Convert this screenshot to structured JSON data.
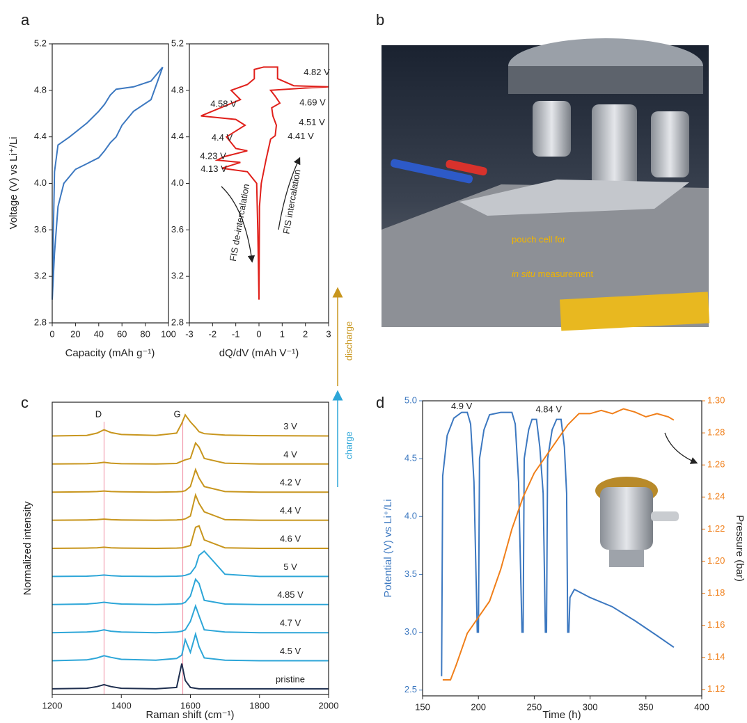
{
  "chart_data": [
    {
      "type": "line",
      "panel": "a",
      "x_label": "Capacity (mAh g⁻¹)",
      "y_label": "Voltage (V) vs Li⁺/Li",
      "xlim": [
        0,
        100
      ],
      "xticks": [
        0,
        20,
        40,
        60,
        80,
        100
      ],
      "ylim": [
        2.8,
        5.2
      ],
      "yticks": [
        2.8,
        3.2,
        3.6,
        {
          "value": 4,
          "label": "4.0"
        },
        4.4,
        4.8,
        5.2
      ],
      "series": [
        {
          "color": "#3c78c0",
          "x": [
            0,
            1,
            2,
            5,
            15,
            30,
            40,
            45,
            50,
            55,
            70,
            85,
            95
          ],
          "values": [
            3.0,
            3.6,
            4.1,
            4.33,
            4.4,
            4.52,
            4.62,
            4.68,
            4.76,
            4.81,
            4.83,
            4.88,
            5.0
          ]
        },
        {
          "color": "#3c78c0",
          "x": [
            95,
            85,
            70,
            60,
            55,
            50,
            45,
            40,
            30,
            20,
            10,
            5,
            2,
            0
          ],
          "values": [
            5.0,
            4.72,
            4.62,
            4.5,
            4.4,
            4.35,
            4.28,
            4.22,
            4.17,
            4.12,
            4.0,
            3.8,
            3.4,
            3.0
          ]
        }
      ]
    },
    {
      "type": "line",
      "panel": "",
      "x_label": "dQ/dV (mAh V⁻¹)",
      "xlim": [
        -3,
        3
      ],
      "xticks": [
        -3,
        -2,
        -1,
        0,
        1,
        2,
        3
      ],
      "ylim": [
        2.8,
        5.2
      ],
      "yticks": [
        2.8,
        3.2,
        3.6,
        {
          "value": 4,
          "label": "4.0"
        },
        4.4,
        4.8,
        5.2
      ],
      "series": [
        {
          "color": "#e0201b",
          "x": [
            0,
            0.02,
            0.1,
            0.3,
            0.5,
            0.7,
            0.75,
            0.6,
            0.55,
            0.9,
            0.7,
            0.5,
            2.0,
            3,
            1.5,
            0.8,
            0.8,
            0.2,
            -0.2,
            -0.2,
            -0.5,
            -1.2,
            -0.8,
            -2.5,
            -1,
            -0.6,
            -1.0,
            -1.4,
            -1,
            -0.5,
            -1.5,
            -1.8,
            -0.8,
            -1.6,
            -0.5,
            -0.1,
            -0.05,
            0
          ],
          "values": [
            3.0,
            3.8,
            4.0,
            4.2,
            4.38,
            4.41,
            4.5,
            4.58,
            4.65,
            4.69,
            4.75,
            4.8,
            4.82,
            4.83,
            4.84,
            4.9,
            5.0,
            5.0,
            4.98,
            4.9,
            4.85,
            4.8,
            4.72,
            4.58,
            4.55,
            4.5,
            4.45,
            4.4,
            4.3,
            4.28,
            4.23,
            4.2,
            4.18,
            4.13,
            4.1,
            4.0,
            3.6,
            3.0
          ]
        }
      ],
      "annotations": [
        {
          "text": "4.82 V",
          "x": 2.49,
          "y": 4.95
        },
        {
          "text": "4.69 V",
          "x": 2.31,
          "y": 4.69
        },
        {
          "text": "4.51 V",
          "x": 2.28,
          "y": 4.52
        },
        {
          "text": "4.41 V",
          "x": 1.8,
          "y": 4.4
        },
        {
          "text": "4.58 V",
          "x": -1.53,
          "y": 4.68
        },
        {
          "text": "4.4 V",
          "x": -1.59,
          "y": 4.39
        },
        {
          "text": "4.23 V",
          "x": -1.98,
          "y": 4.23
        },
        {
          "text": "4.13 V",
          "x": -1.95,
          "y": 4.12
        }
      ],
      "arrow_labels": [
        "FIS de-intercalation",
        "FIS intercalation"
      ]
    },
    {
      "type": "line",
      "panel": "c",
      "x_label": "Raman shift (cm⁻¹)",
      "y_label": "Normalized intensity",
      "xlim": [
        1200,
        2000
      ],
      "xticks": [
        1200,
        1400,
        1600,
        1800,
        2000
      ],
      "ylim": [
        -0.2,
        10.2
      ],
      "reference_color": "#f08aa0",
      "reference_lines": [
        {
          "label": "D",
          "x": 1350
        },
        {
          "label": "G",
          "x": 1578
        }
      ],
      "arrow_labels": [
        "discharge",
        "charge"
      ],
      "series": [
        {
          "name": "3 V",
          "color": "#c8961e",
          "x": [
            1200,
            1300,
            1330,
            1350,
            1370,
            1400,
            1500,
            1560,
            1575,
            1585,
            1600,
            1615,
            1625,
            1640,
            1700,
            1800,
            2000
          ],
          "values": [
            9,
            9.02,
            9.1,
            9.22,
            9.12,
            9.05,
            9.02,
            9.1,
            9.45,
            9.75,
            9.5,
            9.3,
            9.15,
            9.08,
            9.03,
            9.01,
            9
          ]
        },
        {
          "name": "4 V",
          "color": "#c8961e",
          "x": [
            1200,
            1300,
            1330,
            1350,
            1370,
            1400,
            1500,
            1560,
            1575,
            1585,
            1600,
            1615,
            1625,
            1640,
            1700,
            1800,
            2000
          ],
          "values": [
            8,
            8.01,
            8.03,
            8.06,
            8.03,
            8.01,
            8,
            8.02,
            8.1,
            8.15,
            8.2,
            8.75,
            8.6,
            8.2,
            8.03,
            8,
            8
          ]
        },
        {
          "name": "4.2 V",
          "color": "#c8961e",
          "x": [
            1200,
            1300,
            1330,
            1350,
            1370,
            1400,
            1500,
            1560,
            1575,
            1585,
            1600,
            1615,
            1625,
            1640,
            1700,
            1800,
            2000
          ],
          "values": [
            7,
            7.01,
            7.02,
            7.04,
            7.02,
            7.01,
            7,
            7.01,
            7.02,
            7.05,
            7.2,
            7.8,
            7.5,
            7.2,
            7.02,
            7,
            7
          ]
        },
        {
          "name": "4.4 V",
          "color": "#c8961e",
          "x": [
            1200,
            1300,
            1330,
            1350,
            1370,
            1400,
            1500,
            1560,
            1575,
            1585,
            1600,
            1615,
            1625,
            1640,
            1700,
            1800,
            2000
          ],
          "values": [
            6,
            6.01,
            6.02,
            6.04,
            6.02,
            6.01,
            6,
            6.01,
            6.02,
            6.05,
            6.15,
            6.9,
            6.6,
            6.3,
            6.02,
            6,
            6
          ]
        },
        {
          "name": "4.6 V",
          "color": "#c8961e",
          "x": [
            1200,
            1300,
            1330,
            1350,
            1370,
            1400,
            1500,
            1560,
            1575,
            1585,
            1600,
            1615,
            1625,
            1640,
            1700,
            1800,
            2000
          ],
          "values": [
            5,
            5.01,
            5.02,
            5.04,
            5.02,
            5.01,
            5,
            5.01,
            5.02,
            5.05,
            5.1,
            5.75,
            5.8,
            5.3,
            5.02,
            5,
            5
          ]
        },
        {
          "name": "5 V",
          "color": "#2da6d8",
          "x": [
            1200,
            1300,
            1330,
            1350,
            1370,
            1400,
            1500,
            1560,
            1575,
            1585,
            1600,
            1615,
            1625,
            1640,
            1700,
            1800,
            2000
          ],
          "values": [
            4,
            4.01,
            4.03,
            4.05,
            4.03,
            4.01,
            4,
            4.01,
            4.02,
            4.04,
            4.1,
            4.35,
            4.75,
            4.9,
            4.08,
            4,
            4
          ]
        },
        {
          "name": "4.85 V",
          "color": "#2da6d8",
          "x": [
            1200,
            1300,
            1330,
            1350,
            1370,
            1400,
            1500,
            1560,
            1575,
            1585,
            1600,
            1615,
            1625,
            1640,
            1700,
            1800,
            2000
          ],
          "values": [
            3,
            3.02,
            3.05,
            3.08,
            3.05,
            3.02,
            3,
            3.02,
            3.03,
            3.08,
            3.3,
            3.9,
            3.75,
            3.15,
            3.02,
            3,
            3
          ]
        },
        {
          "name": "4.7 V",
          "color": "#2da6d8",
          "x": [
            1200,
            1300,
            1330,
            1350,
            1370,
            1400,
            1500,
            1560,
            1575,
            1585,
            1600,
            1615,
            1625,
            1640,
            1700,
            1800,
            2000
          ],
          "values": [
            2,
            2.02,
            2.05,
            2.1,
            2.05,
            2.02,
            2,
            2.02,
            2.05,
            2.1,
            2.4,
            2.95,
            2.6,
            2.1,
            2.02,
            2,
            2
          ]
        },
        {
          "name": "4.5 V",
          "color": "#2da6d8",
          "x": [
            1200,
            1300,
            1330,
            1350,
            1370,
            1400,
            1500,
            1560,
            1575,
            1585,
            1600,
            1615,
            1625,
            1640,
            1700,
            1800,
            2000
          ],
          "values": [
            1,
            1.03,
            1.1,
            1.18,
            1.12,
            1.05,
            1.02,
            1.08,
            1.2,
            1.75,
            1.3,
            1.95,
            1.5,
            1.1,
            1.02,
            1,
            1
          ]
        },
        {
          "name": "pristine",
          "color": "#1f2f4f",
          "x": [
            1200,
            1300,
            1330,
            1350,
            1370,
            1400,
            1500,
            1560,
            1575,
            1585,
            1600,
            1615,
            1625,
            1640,
            1700,
            1800,
            2000
          ],
          "values": [
            0,
            0.02,
            0.08,
            0.15,
            0.08,
            0.02,
            0,
            0.05,
            0.9,
            0.3,
            0.05,
            0.02,
            0,
            0,
            0,
            0,
            0
          ]
        }
      ]
    },
    {
      "type": "line",
      "panel": "d",
      "x_label": "Time (h)",
      "y_label": "Potential (V) vs Li⁺/Li",
      "y2_label": "Pressure (bar)",
      "y_color": "#3c78c0",
      "y2_color": "#f07f1a",
      "xlim": [
        150,
        400
      ],
      "xticks": [
        150,
        200,
        250,
        300,
        350,
        400
      ],
      "ylim": [
        2.45,
        5.0
      ],
      "yticks": [
        2.5,
        {
          "value": 3,
          "label": "3.0"
        },
        3.5,
        {
          "value": 4,
          "label": "4.0"
        },
        4.5,
        {
          "value": 5,
          "label": "5.0"
        }
      ],
      "y2lim": [
        1.116,
        1.3
      ],
      "y2ticks": [
        1.12,
        1.14,
        1.16,
        1.18,
        {
          "value": 1.2,
          "label": "1.20"
        },
        1.22,
        1.24,
        1.26,
        1.28,
        {
          "value": 1.3,
          "label": "1.30"
        }
      ],
      "series": [
        {
          "color": "#3c78c0",
          "x": [
            167,
            168,
            172,
            178,
            185,
            190,
            193,
            196,
            199,
            200,
            201,
            205,
            210,
            220,
            230,
            233,
            236,
            239,
            240,
            241,
            245,
            248,
            252,
            255,
            258,
            260,
            261,
            262,
            266,
            270,
            274,
            277,
            279,
            280,
            281,
            282,
            286,
            300,
            320,
            340,
            360,
            375
          ],
          "values": [
            2.62,
            4.35,
            4.7,
            4.85,
            4.9,
            4.9,
            4.8,
            4.3,
            3.0,
            3.0,
            4.5,
            4.75,
            4.88,
            4.9,
            4.9,
            4.8,
            4.3,
            3.0,
            3.0,
            4.5,
            4.75,
            4.84,
            4.84,
            4.6,
            4.2,
            3.0,
            3.0,
            4.5,
            4.75,
            4.84,
            4.84,
            4.6,
            4.2,
            3.0,
            3.0,
            3.3,
            3.37,
            3.3,
            3.22,
            3.1,
            2.97,
            2.87
          ]
        },
        {
          "color": "#f07f1a",
          "axis": "y2",
          "x": [
            168,
            175,
            180,
            190,
            200,
            210,
            220,
            230,
            240,
            250,
            260,
            270,
            280,
            290,
            300,
            310,
            320,
            330,
            340,
            350,
            360,
            370,
            375
          ],
          "values": [
            1.126,
            1.126,
            1.135,
            1.155,
            1.165,
            1.175,
            1.195,
            1.22,
            1.24,
            1.255,
            1.265,
            1.275,
            1.285,
            1.292,
            1.292,
            1.294,
            1.292,
            1.295,
            1.293,
            1.29,
            1.292,
            1.29,
            1.288
          ]
        }
      ],
      "annotations": [
        {
          "text": "4.9 V",
          "x": 185,
          "y": 4.95
        },
        {
          "text": "4.84 V",
          "x": 263,
          "y": 4.92
        }
      ]
    }
  ],
  "photo": {
    "panel": "b",
    "caption_line1": "pouch cell for",
    "caption_italic": "in situ",
    "caption_rest": "measurement"
  }
}
